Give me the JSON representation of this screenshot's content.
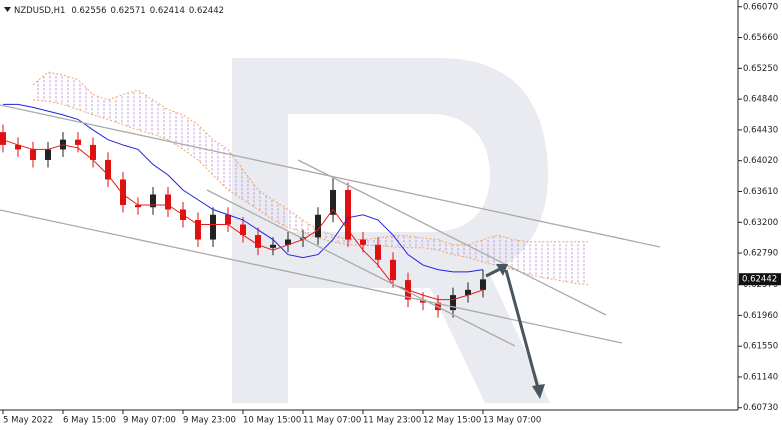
{
  "chart_data": {
    "type": "candlestick",
    "header": {
      "symbol": "NZDUSD,H1",
      "open": 0.62556,
      "high": 0.62571,
      "low": 0.62414,
      "close": 0.62442
    },
    "last_price": 0.62442,
    "categories": [
      "5 May 2022",
      null,
      null,
      null,
      "6 May 15:00",
      null,
      null,
      null,
      "9 May 07:00",
      null,
      null,
      null,
      "9 May 23:00",
      null,
      null,
      null,
      "10 May 15:00",
      null,
      null,
      null,
      "11 May 07:00",
      null,
      null,
      null,
      "11 May 23:00",
      null,
      null,
      null,
      "12 May 15:00",
      null,
      null,
      null,
      "13 May 07:00",
      null,
      null,
      null,
      null,
      null,
      null,
      null
    ],
    "open": [
      0.644,
      0.6423,
      0.6417,
      0.6403,
      0.6417,
      0.643,
      0.6423,
      0.6403,
      0.6377,
      0.6343,
      0.634,
      0.6357,
      0.6337,
      0.6323,
      0.6297,
      0.633,
      0.6317,
      0.6303,
      0.6286,
      0.629,
      0.6297,
      0.63,
      0.633,
      0.6363,
      0.6297,
      0.629,
      0.627,
      0.6243,
      0.6217,
      0.6213,
      0.6203,
      0.6223,
      0.623,
      null,
      null,
      null,
      null,
      null,
      null,
      null
    ],
    "high": [
      0.645,
      0.6433,
      0.6427,
      0.6427,
      0.644,
      0.644,
      0.6433,
      0.6413,
      0.6387,
      0.6353,
      0.6367,
      0.6367,
      0.6347,
      0.6333,
      0.634,
      0.634,
      0.6327,
      0.6313,
      0.63,
      0.6307,
      0.631,
      0.634,
      0.638,
      0.6373,
      0.6307,
      0.63,
      0.628,
      0.6253,
      0.6227,
      0.6223,
      0.6233,
      0.624,
      0.6257,
      null,
      null,
      null,
      null,
      null,
      null,
      null
    ],
    "low": [
      0.6413,
      0.6407,
      0.6393,
      0.6393,
      0.6407,
      0.6413,
      0.6393,
      0.6367,
      0.6333,
      0.633,
      0.633,
      0.6327,
      0.6313,
      0.6287,
      0.6287,
      0.6307,
      0.6293,
      0.6276,
      0.6276,
      0.628,
      0.6287,
      0.629,
      0.632,
      0.6287,
      0.628,
      0.626,
      0.6233,
      0.6207,
      0.6203,
      0.6193,
      0.6193,
      0.6213,
      0.622,
      null,
      null,
      null,
      null,
      null,
      null,
      null
    ],
    "close": [
      0.6423,
      0.6417,
      0.6403,
      0.6417,
      0.643,
      0.6423,
      0.6403,
      0.6377,
      0.6343,
      0.634,
      0.6357,
      0.6337,
      0.6323,
      0.6297,
      0.633,
      0.6317,
      0.6303,
      0.6286,
      0.629,
      0.6297,
      0.63,
      0.633,
      0.6363,
      0.6297,
      0.629,
      0.627,
      0.6243,
      0.6217,
      0.6213,
      0.6203,
      0.6223,
      0.623,
      0.6244,
      null,
      null,
      null,
      null,
      null,
      null,
      null
    ],
    "up_color": "#222222",
    "down_color": "#e01010",
    "lines": [
      {
        "color": "#2222dd",
        "values": [
          0.6477,
          0.6477,
          0.6473,
          0.6468,
          0.6463,
          0.6457,
          0.6443,
          0.643,
          0.6423,
          0.6417,
          0.6397,
          0.6383,
          0.6363,
          0.635,
          0.6337,
          0.633,
          0.6323,
          0.631,
          0.6297,
          0.6277,
          0.6273,
          0.6277,
          0.6297,
          0.6326,
          0.633,
          0.6323,
          0.6303,
          0.6277,
          0.6263,
          0.6257,
          0.6254,
          0.6254,
          0.6257,
          null,
          null,
          null,
          null,
          null,
          null,
          null
        ]
      },
      {
        "color": "#e81818",
        "values": [
          0.643,
          0.6423,
          0.6417,
          0.6417,
          0.6423,
          0.6419,
          0.6403,
          0.6383,
          0.6357,
          0.6343,
          0.6343,
          0.6343,
          0.633,
          0.6317,
          0.6317,
          0.6317,
          0.6303,
          0.629,
          0.6283,
          0.629,
          0.6297,
          0.631,
          0.6337,
          0.631,
          0.6283,
          0.6263,
          0.6237,
          0.623,
          0.6223,
          0.6217,
          0.6217,
          0.6223,
          0.623,
          null,
          null,
          null,
          null,
          null,
          null,
          null
        ]
      }
    ],
    "cloud": {
      "upper_color": "#f4a460",
      "lower_color": "#f4a460",
      "fill_color": "#b48cd2",
      "upper": [
        null,
        null,
        0.6503,
        0.652,
        0.6516,
        0.651,
        0.649,
        0.6483,
        0.649,
        0.6496,
        0.6483,
        0.647,
        0.6463,
        0.645,
        0.643,
        0.6417,
        0.639,
        0.6363,
        0.635,
        0.6337,
        0.6323,
        0.631,
        0.6303,
        0.6297,
        0.6297,
        0.6299,
        0.6302,
        0.6302,
        0.6299,
        0.6297,
        0.629,
        0.629,
        0.6297,
        0.6303,
        0.6297,
        0.6294,
        0.6294,
        0.6294,
        0.6294,
        0.6294
      ],
      "lower": [
        null,
        null,
        0.6483,
        0.6481,
        0.6477,
        0.647,
        0.6463,
        0.6457,
        0.645,
        0.6443,
        0.6437,
        0.643,
        0.6417,
        0.6403,
        0.6383,
        0.6363,
        0.635,
        0.6337,
        0.6323,
        0.6313,
        0.6307,
        0.6299,
        0.6294,
        0.629,
        0.6289,
        0.6289,
        0.6287,
        0.6286,
        0.6286,
        0.6283,
        0.6277,
        0.6273,
        0.6267,
        0.6262,
        0.6257,
        0.6251,
        0.6246,
        0.6243,
        0.6239,
        0.6237
      ]
    },
    "ylim": [
      0.607,
      0.6616
    ],
    "yticks": [
      {
        "value": 0.6607,
        "label": "0.66070"
      },
      {
        "value": 0.6566,
        "label": "0.65660"
      },
      {
        "value": 0.6525,
        "label": "0.65250"
      },
      {
        "value": 0.6484,
        "label": "0.64840"
      },
      {
        "value": 0.6443,
        "label": "0.64430"
      },
      {
        "value": 0.6402,
        "label": "0.64020"
      },
      {
        "value": 0.6361,
        "label": "0.63610"
      },
      {
        "value": 0.632,
        "label": "0.63200"
      },
      {
        "value": 0.6279,
        "label": "0.62790"
      },
      {
        "value": 0.6237,
        "label": "0.62370"
      },
      {
        "value": 0.6196,
        "label": "0.61960"
      },
      {
        "value": 0.6155,
        "label": "0.61550"
      },
      {
        "value": 0.6114,
        "label": "0.61140"
      },
      {
        "value": 0.6073,
        "label": "0.60730"
      }
    ]
  }
}
